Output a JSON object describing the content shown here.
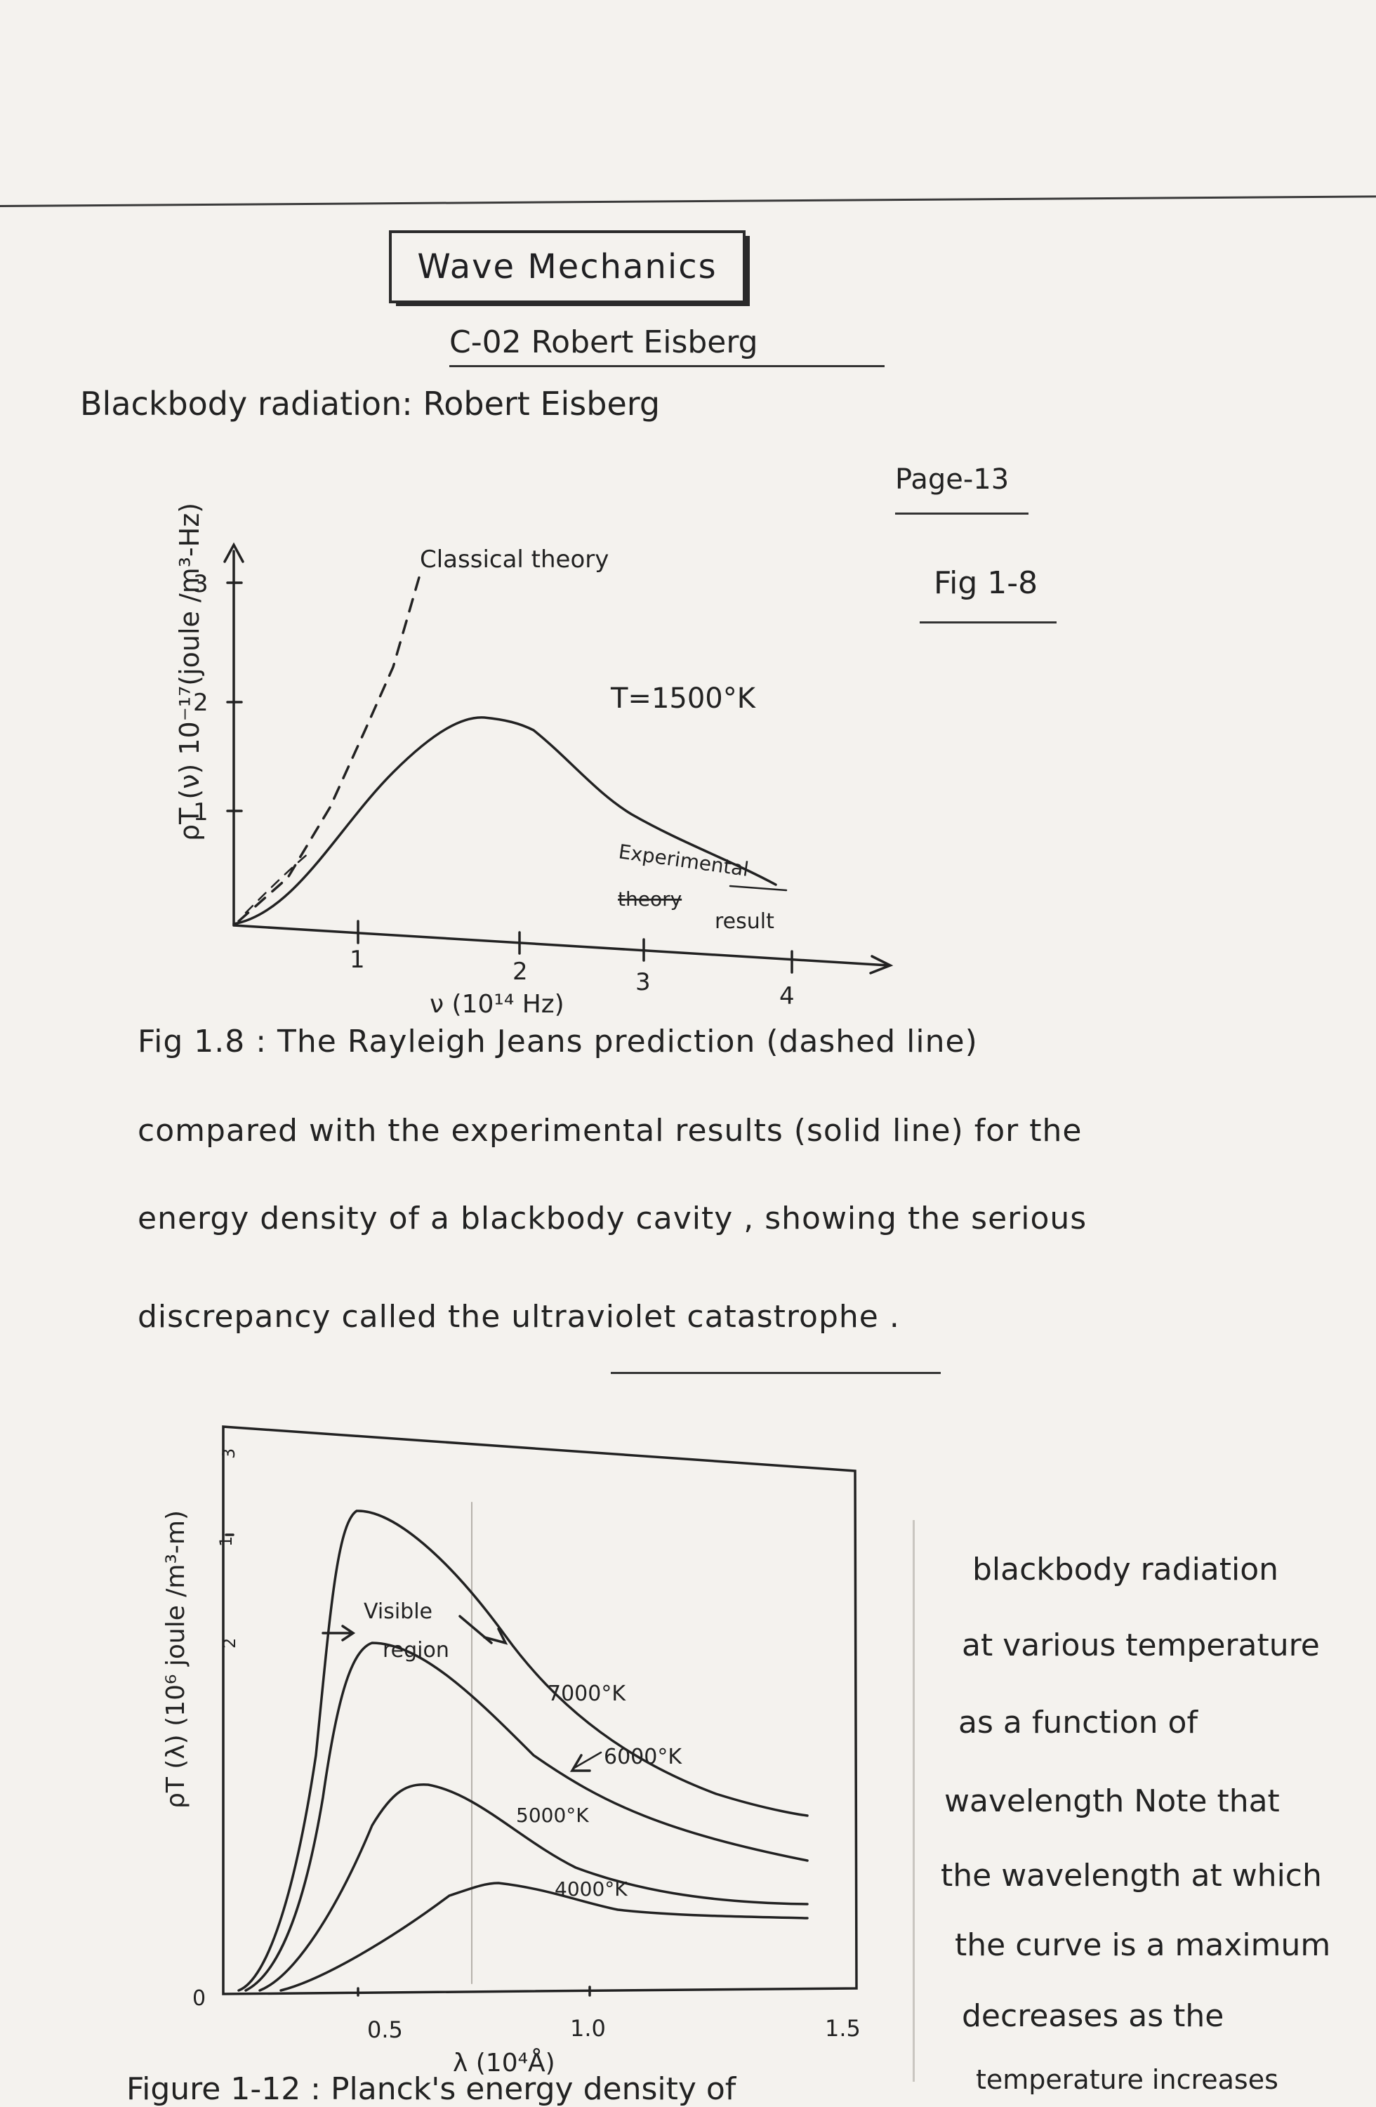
{
  "header": {
    "title": "Wave Mechanics",
    "subheading": "C-02   Robert  Eisberg",
    "topic_line": "Blackbody radiation:   Robert  Eisberg",
    "page_ref": "Page-13",
    "fig_ref": "Fig  1-8"
  },
  "fig18": {
    "ylabel": "ρT (ν)  10⁻¹⁷(joule /m³-Hz)",
    "xlabel": "ν (10¹⁴ Hz)",
    "yticks": [
      "1",
      "2",
      "3"
    ],
    "xticks": [
      "1",
      "2",
      "3",
      "4"
    ],
    "label_classical": "Classical theory",
    "label_temp": "T=1500°K",
    "label_exp_1": "Experimental",
    "label_exp_2": "theory",
    "label_exp_3": "result"
  },
  "caption18": {
    "lines": [
      "Fig 1.8 :  The  Rayleigh  Jeans  prediction  (dashed  line)",
      "compared  with  the  experimental  results  (solid  line)  for  the",
      "energy  density  of  a  blackbody  cavity ,  showing  the  serious",
      "discrepancy   called   the   ultraviolet  catastrophe ."
    ]
  },
  "fig112": {
    "ylabel": "ρT (λ)  (10⁶ joule /m³-m)",
    "xlabel": "λ (10⁴Å)",
    "yticks": [
      "1",
      "2",
      "3"
    ],
    "origin": "0",
    "xticks": [
      "0.5",
      "1.0",
      "1.5"
    ],
    "label_visible_1": "Visible",
    "label_visible_2": "region",
    "curves": [
      {
        "label": "7000°K"
      },
      {
        "label": "6000°K"
      },
      {
        "label": "5000°K"
      },
      {
        "label": "4000°K"
      }
    ]
  },
  "side_note": {
    "lines": [
      "blackbody  radiation",
      "at  various  temperature",
      "as  a  function  of",
      "wavelength  Note  that",
      "the  wavelength  at  which",
      "the  curve  is  a  maximum",
      "decreases  as  the",
      "temperature  increases"
    ]
  },
  "caption112": "Figure 1-12 :  Planck's  energy  density  of"
}
